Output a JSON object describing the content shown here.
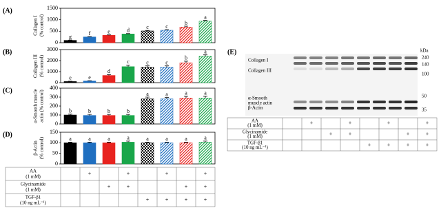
{
  "chart_data": [
    {
      "type": "bar",
      "label": "(A)",
      "ylabel": [
        "Collagen I",
        "(% control)"
      ],
      "ylim": [
        0,
        1500
      ],
      "yticks": [
        0,
        500,
        1000,
        1500
      ],
      "values": [
        100,
        250,
        320,
        380,
        510,
        540,
        680,
        940
      ],
      "errors": [
        10,
        15,
        20,
        15,
        25,
        30,
        40,
        30
      ],
      "letters": [
        "g",
        "f",
        "e",
        "d",
        "c",
        "c",
        "b",
        "a"
      ],
      "colors": [
        "#000000",
        "#1f6fc0",
        "#e8231f",
        "#19a64a",
        "#000000",
        "#1f6fc0",
        "#e8231f",
        "#19a64a"
      ],
      "patterns": [
        "solid",
        "solid",
        "solid",
        "solid",
        "checker",
        "stripe",
        "stripe",
        "stripe"
      ]
    },
    {
      "type": "bar",
      "label": "(B)",
      "ylabel": [
        "Collagen III",
        "(% control)"
      ],
      "ylim": [
        0,
        3000
      ],
      "yticks": [
        0,
        1000,
        2000,
        3000
      ],
      "values": [
        100,
        150,
        650,
        1450,
        1400,
        1400,
        1800,
        2400
      ],
      "errors": [
        30,
        30,
        80,
        150,
        120,
        120,
        150,
        120
      ],
      "letters": [
        "e",
        "e",
        "d",
        "c",
        "c",
        "c",
        "b",
        "a"
      ],
      "colors": [
        "#000000",
        "#1f6fc0",
        "#e8231f",
        "#19a64a",
        "#000000",
        "#1f6fc0",
        "#e8231f",
        "#19a64a"
      ],
      "patterns": [
        "solid",
        "solid",
        "solid",
        "solid",
        "checker",
        "stripe",
        "stripe",
        "stripe"
      ]
    },
    {
      "type": "bar",
      "label": "(C)",
      "ylabel": [
        "α-Smooth muscle",
        "actin (% control)"
      ],
      "ylim": [
        0,
        400
      ],
      "yticks": [
        0,
        100,
        200,
        300,
        400
      ],
      "values": [
        100,
        95,
        95,
        95,
        280,
        280,
        290,
        290
      ],
      "errors": [
        10,
        12,
        12,
        12,
        20,
        15,
        20,
        20
      ],
      "letters": [
        "b",
        "b",
        "b",
        "b",
        "a",
        "a",
        "a",
        "a"
      ],
      "colors": [
        "#000000",
        "#1f6fc0",
        "#e8231f",
        "#19a64a",
        "#000000",
        "#1f6fc0",
        "#e8231f",
        "#19a64a"
      ],
      "patterns": [
        "solid",
        "solid",
        "solid",
        "solid",
        "checker",
        "stripe",
        "stripe",
        "stripe"
      ]
    },
    {
      "type": "bar",
      "label": "(D)",
      "ylabel": [
        "β-Actin",
        "(% control)"
      ],
      "ylim": [
        0,
        150
      ],
      "yticks": [
        0,
        50,
        100,
        150
      ],
      "values": [
        100,
        100,
        100,
        103,
        100,
        100,
        100,
        103
      ],
      "errors": [
        3,
        3,
        3,
        5,
        3,
        3,
        3,
        5
      ],
      "letters": [
        "a",
        "a",
        "a",
        "a",
        "a",
        "a",
        "a",
        "a"
      ],
      "colors": [
        "#000000",
        "#1f6fc0",
        "#e8231f",
        "#19a64a",
        "#000000",
        "#1f6fc0",
        "#e8231f",
        "#19a64a"
      ],
      "patterns": [
        "solid",
        "solid",
        "solid",
        "solid",
        "checker",
        "stripe",
        "stripe",
        "stripe"
      ]
    }
  ],
  "treatments": [
    {
      "name": "AA",
      "dose": "(1 mM)",
      "marks": [
        null,
        "+",
        null,
        "+",
        null,
        "+",
        null,
        "+"
      ]
    },
    {
      "name": "Glycinamide",
      "dose": "(1 mM)",
      "marks": [
        null,
        null,
        "+",
        "+",
        null,
        null,
        "+",
        "+"
      ]
    },
    {
      "name": "TGF-β1",
      "dose": "(10 ng mL⁻¹)",
      "marks": [
        null,
        null,
        null,
        null,
        "+",
        "+",
        "+",
        "+"
      ]
    }
  ],
  "blot": {
    "label": "(E)",
    "unit": "kDa",
    "markers": [
      "240",
      "140",
      "100",
      "50",
      "35"
    ],
    "proteins": [
      [
        "Collagen I"
      ],
      [
        "Collagen III"
      ],
      [
        "α-Smooth",
        "muscle actin"
      ],
      [
        "β-Actin"
      ]
    ]
  }
}
